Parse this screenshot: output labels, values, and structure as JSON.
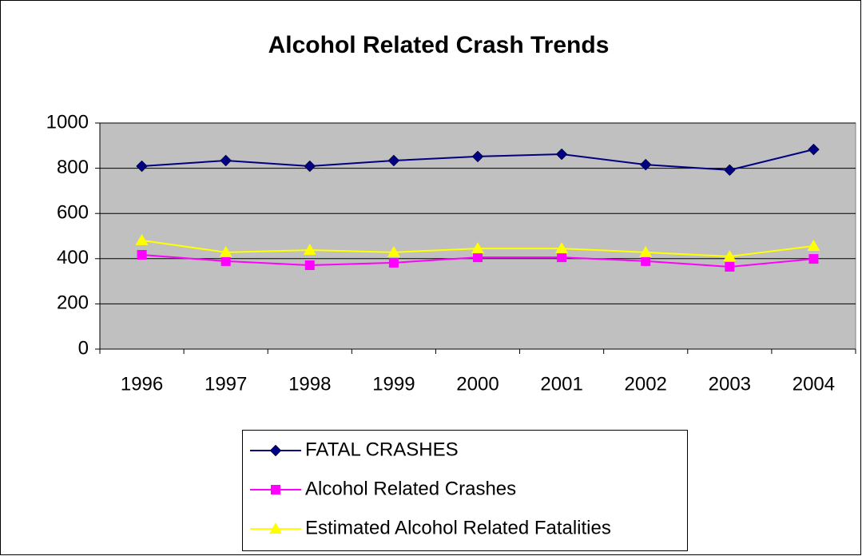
{
  "chart_data": {
    "type": "line",
    "title": "Alcohol Related Crash Trends",
    "categories": [
      "1996",
      "1997",
      "1998",
      "1999",
      "2000",
      "2001",
      "2002",
      "2003",
      "2004"
    ],
    "series": [
      {
        "name": "FATAL CRASHES",
        "color": "#000080",
        "marker": "diamond",
        "values": [
          809,
          834,
          809,
          834,
          852,
          862,
          816,
          792,
          883
        ]
      },
      {
        "name": "Alcohol Related Crashes",
        "color": "#ff00ff",
        "marker": "square",
        "values": [
          417,
          389,
          371,
          382,
          406,
          406,
          389,
          364,
          399
        ]
      },
      {
        "name": "Estimated Alcohol Related Fatalities",
        "color": "#ffff00",
        "marker": "triangle",
        "values": [
          481,
          428,
          438,
          428,
          445,
          445,
          428,
          410,
          456
        ]
      }
    ],
    "ylim": [
      0,
      1000
    ],
    "yticks": [
      0,
      200,
      400,
      600,
      800,
      1000
    ],
    "grid": true,
    "legend": "bottom"
  }
}
